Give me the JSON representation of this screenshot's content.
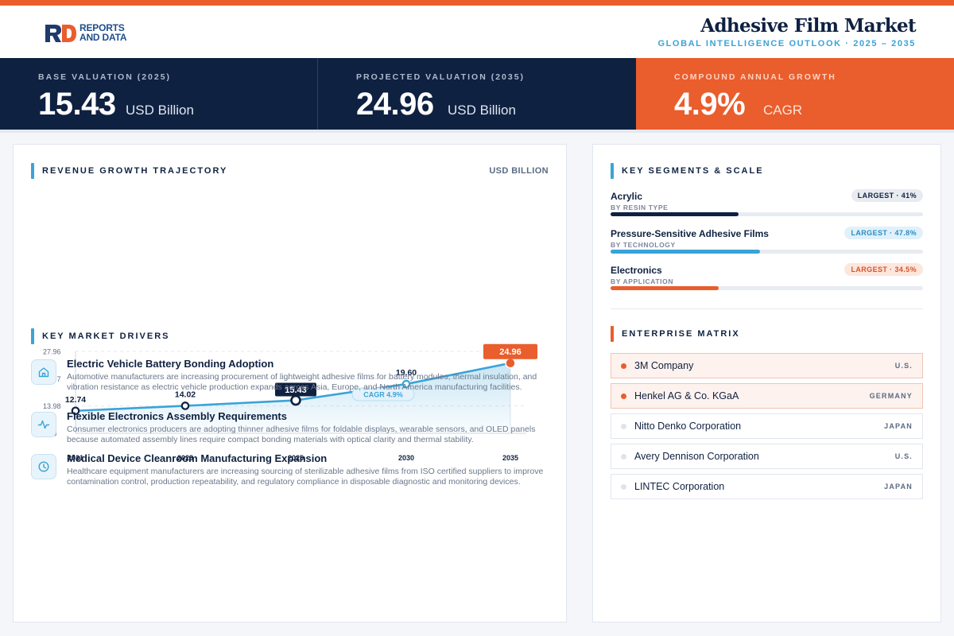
{
  "brand": {
    "logo_mark": "RD",
    "logo_line1": "REPORTS",
    "logo_line2": "AND DATA",
    "accent": "#ea5d2c",
    "navy": "#0f2141",
    "blue": "#3aa3d8"
  },
  "header": {
    "title": "Adhesive Film Market",
    "subtitle": "GLOBAL INTELLIGENCE OUTLOOK  ·  2025 – 2035"
  },
  "kpis": [
    {
      "label": "BASE VALUATION (2025)",
      "value": "15.43",
      "unit": "USD Billion"
    },
    {
      "label": "PROJECTED VALUATION (2035)",
      "value": "24.96",
      "unit": "USD Billion"
    },
    {
      "label": "COMPOUND ANNUAL GROWTH",
      "value": "4.9%",
      "unit": "CAGR"
    }
  ],
  "revenue": {
    "section_title": "REVENUE GROWTH TRAJECTORY",
    "unit_label": "USD BILLION",
    "cagr_label": "CAGR 4.9%"
  },
  "chart_data": {
    "type": "area",
    "title": "REVENUE GROWTH TRAJECTORY",
    "ylabel": "USD BILLION",
    "categories": [
      "2021",
      "2023",
      "2025",
      "2030",
      "2035"
    ],
    "values": [
      12.74,
      14.02,
      15.43,
      19.6,
      24.96
    ],
    "value_labels": [
      "12.74",
      "14.02",
      "15.43",
      "19.60",
      "24.96"
    ],
    "yticks": [
      "27.96",
      "20.97",
      "13.98",
      "6.99"
    ],
    "ylim": [
      6.99,
      27.96
    ],
    "grid": true,
    "highlighted": {
      "2025": "base",
      "2035": "projected"
    },
    "annotation": "CAGR 4.9%"
  },
  "drivers": {
    "section_title": "KEY MARKET DRIVERS",
    "items": [
      {
        "icon": "home-icon",
        "title": "Electric Vehicle Battery Bonding Adoption",
        "desc": "Automotive manufacturers are increasing procurement of lightweight adhesive films for battery modules, thermal insulation, and vibration resistance as electric vehicle production expands across Asia, Europe, and North America manufacturing facilities."
      },
      {
        "icon": "activity-icon",
        "title": "Flexible Electronics Assembly Requirements",
        "desc": "Consumer electronics producers are adopting thinner adhesive films for foldable displays, wearable sensors, and OLED panels because automated assembly lines require compact bonding materials with optical clarity and thermal stability."
      },
      {
        "icon": "clock-icon",
        "title": "Medical Device Cleanroom Manufacturing Expansion",
        "desc": "Healthcare equipment manufacturers are increasing sourcing of sterilizable adhesive films from ISO certified suppliers to improve contamination control, production repeatability, and regulatory compliance in disposable diagnostic and monitoring devices."
      }
    ]
  },
  "segments": {
    "section_title": "KEY SEGMENTS & SCALE",
    "items": [
      {
        "name": "Acrylic",
        "category": "BY RESIN TYPE",
        "badge": "LARGEST · 41%",
        "share": 0.41,
        "color": "#0f2141"
      },
      {
        "name": "Pressure-Sensitive Adhesive Films",
        "category": "BY TECHNOLOGY",
        "badge": "LARGEST · 47.8%",
        "share": 0.478,
        "color": "#3aa3d8"
      },
      {
        "name": "Electronics",
        "category": "BY APPLICATION",
        "badge": "LARGEST · 34.5%",
        "share": 0.345,
        "color": "#ea5d2c"
      }
    ]
  },
  "enterprise": {
    "section_title": "ENTERPRISE MATRIX",
    "items": [
      {
        "name": "3M Company",
        "country": "U.S.",
        "highlight": true
      },
      {
        "name": "Henkel AG & Co. KGaA",
        "country": "GERMANY",
        "highlight": true
      },
      {
        "name": "Nitto Denko Corporation",
        "country": "JAPAN",
        "highlight": false
      },
      {
        "name": "Avery Dennison Corporation",
        "country": "U.S.",
        "highlight": false
      },
      {
        "name": "LINTEC Corporation",
        "country": "JAPAN",
        "highlight": false
      }
    ]
  }
}
